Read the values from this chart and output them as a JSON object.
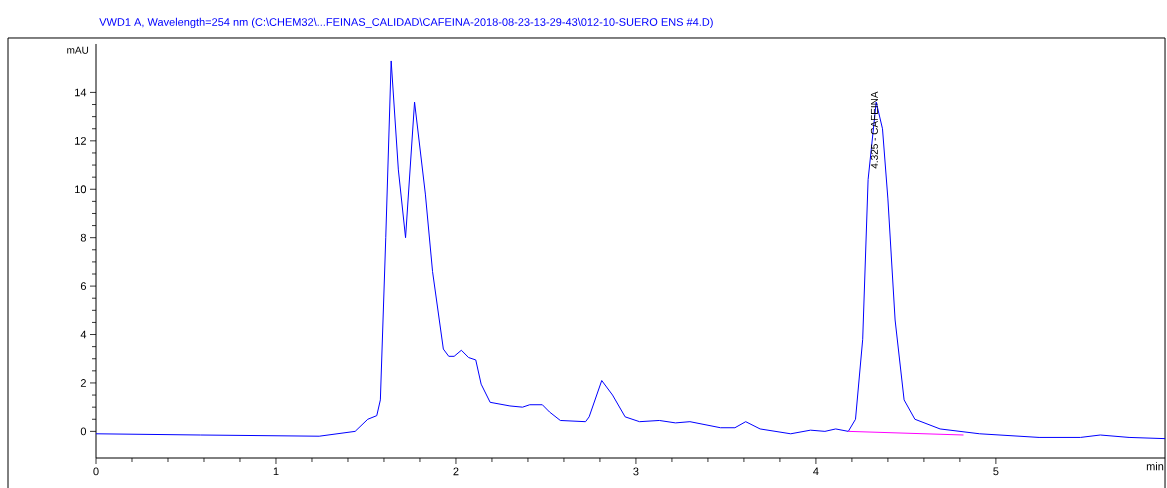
{
  "chart_data": {
    "type": "line",
    "title": "VWD1 A, Wavelength=254 nm (C:\\CHEM32\\...FEINAS_CALIDAD\\CAFEINA-2018-08-23-13-29-43\\012-10-SUERO ENS #4.D)",
    "xlabel": "min",
    "ylabel": "mAU",
    "xlim": [
      0,
      5.94
    ],
    "ylim": [
      -1.1,
      16
    ],
    "xticks": [
      0,
      1,
      2,
      3,
      4,
      5
    ],
    "yticks": [
      0,
      2,
      4,
      6,
      8,
      10,
      12,
      14
    ],
    "annotations": [
      {
        "text": "4.325 - CAFEINA",
        "x": 4.325,
        "y": 10.8
      }
    ],
    "series": [
      {
        "color": "#0000ff",
        "x": [
          0,
          0.58,
          1.24,
          1.44,
          1.51,
          1.56,
          1.58,
          1.61,
          1.64,
          1.68,
          1.72,
          1.77,
          1.83,
          1.87,
          1.93,
          1.96,
          1.99,
          2.03,
          2.07,
          2.11,
          2.14,
          2.19,
          2.3,
          2.37,
          2.41,
          2.48,
          2.52,
          2.58,
          2.72,
          2.74,
          2.81,
          2.87,
          2.94,
          3.02,
          3.13,
          3.22,
          3.3,
          3.47,
          3.55,
          3.61,
          3.69,
          3.86,
          3.97,
          4.05,
          4.11,
          4.18,
          4.22,
          4.26,
          4.29,
          4.335,
          4.37,
          4.4,
          4.44,
          4.49,
          4.55,
          4.69,
          4.91,
          5.24,
          5.47,
          5.58,
          5.74,
          5.94
        ],
        "values": [
          -0.1,
          -0.15,
          -0.2,
          0,
          0.5,
          0.65,
          1.3,
          8,
          15.3,
          10.8,
          8.0,
          13.6,
          9.8,
          6.6,
          3.4,
          3.1,
          3.1,
          3.35,
          3.05,
          2.95,
          1.95,
          1.2,
          1.05,
          1.0,
          1.1,
          1.1,
          0.8,
          0.45,
          0.4,
          0.6,
          2.1,
          1.5,
          0.6,
          0.4,
          0.45,
          0.35,
          0.4,
          0.15,
          0.15,
          0.4,
          0.1,
          -0.1,
          0.05,
          0,
          0.1,
          0,
          0.5,
          3.8,
          10.4,
          13.6,
          12.5,
          9.6,
          4.6,
          1.3,
          0.5,
          0.1,
          -0.1,
          -0.25,
          -0.25,
          -0.15,
          -0.25,
          -0.3
        ]
      },
      {
        "color": "#ff00ff",
        "x": [
          4.18,
          4.82
        ],
        "values": [
          0,
          -0.15
        ]
      }
    ]
  }
}
